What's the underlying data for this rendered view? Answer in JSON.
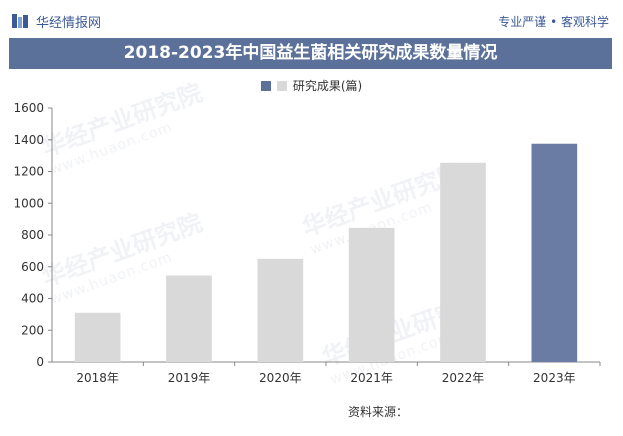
{
  "header": {
    "site_name": "华经情报网",
    "slogan": "专业严谨 • 客观科学"
  },
  "legend": {
    "label": "研究成果(篇)"
  },
  "watermark": {
    "text": "华经产业研究院",
    "url": "www.huaon.com"
  },
  "source": "资料来源：",
  "colors": {
    "title_bg": "#5b7199",
    "bar_default": "#d9d9d9",
    "bar_highlight": "#6b7ca4",
    "brand_text": "#3c5a95"
  },
  "chart_data": {
    "type": "bar",
    "title": "2018-2023年中国益生菌相关研究成果数量情况",
    "categories": [
      "2018年",
      "2019年",
      "2020年",
      "2021年",
      "2022年",
      "2023年"
    ],
    "series": [
      {
        "name": "研究成果(篇)",
        "values": [
          310,
          545,
          650,
          845,
          1255,
          1375
        ]
      }
    ],
    "highlight_index": 5,
    "ylim": [
      0,
      1600
    ],
    "yticks": [
      0,
      200,
      400,
      600,
      800,
      1000,
      1200,
      1400,
      1600
    ],
    "xlabel": "",
    "ylabel": "",
    "grid": false,
    "legend_position": "top-center"
  }
}
